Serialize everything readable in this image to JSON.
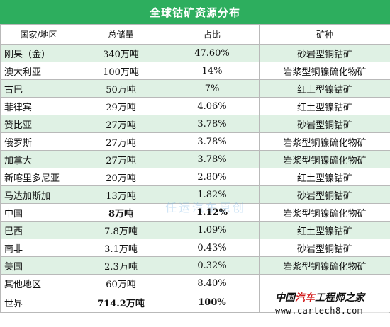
{
  "title": "全球钴矿资源分布",
  "headers": [
    "国家/地区",
    "总储量",
    "占比",
    "矿种"
  ],
  "rows": [
    {
      "country": "刚果（金）",
      "reserve": "340万吨",
      "share": "47.60%",
      "type": "砂岩型铜钴矿"
    },
    {
      "country": "澳大利亚",
      "reserve": "100万吨",
      "share": "14%",
      "type": "岩浆型铜镍硫化物矿"
    },
    {
      "country": "古巴",
      "reserve": "50万吨",
      "share": "7%",
      "type": "红土型镍钴矿"
    },
    {
      "country": "菲律宾",
      "reserve": "29万吨",
      "share": "4.06%",
      "type": "红土型镍钴矿"
    },
    {
      "country": "赞比亚",
      "reserve": "27万吨",
      "share": "3.78%",
      "type": "砂岩型铜钴矿"
    },
    {
      "country": "俄罗斯",
      "reserve": "27万吨",
      "share": "3.78%",
      "type": "岩浆型铜镍硫化物矿"
    },
    {
      "country": "加拿大",
      "reserve": "27万吨",
      "share": "3.78%",
      "type": "岩浆型铜镍硫化物矿"
    },
    {
      "country": "新喀里多尼亚",
      "reserve": "20万吨",
      "share": "2.80%",
      "type": "红土型镍钴矿"
    },
    {
      "country": "马达加斯加",
      "reserve": "13万吨",
      "share": "1.82%",
      "type": "砂岩型铜钴矿"
    },
    {
      "country": "中国",
      "reserve": "8万吨",
      "share": "1.12%",
      "type": "岩浆型铜镍硫化物矿"
    },
    {
      "country": "巴西",
      "reserve": "7.8万吨",
      "share": "1.09%",
      "type": "红土型镍钴矿"
    },
    {
      "country": "南非",
      "reserve": "3.1万吨",
      "share": "0.43%",
      "type": "砂岩型铜钴矿"
    },
    {
      "country": "美国",
      "reserve": "2.3万吨",
      "share": "0.32%",
      "type": "岩浆型铜镍硫化物矿"
    },
    {
      "country": "其他地区",
      "reserve": "60万吨",
      "share": "8.40%",
      "type": ""
    }
  ],
  "total": {
    "country": "世界",
    "reserve": "714.2万吨",
    "share": "100%",
    "type": ""
  },
  "watermarks": {
    "middle": "任运汽车原创",
    "logo_cn_black": "中国",
    "logo_cn_red": "汽车",
    "logo_cn_rest": "工程师之家",
    "logo_url": "www.cartech8.com"
  },
  "colors": {
    "title_bg": "#2dae5e",
    "alt_row_bg": "#dff1e4",
    "border": "#b9b9b9"
  }
}
